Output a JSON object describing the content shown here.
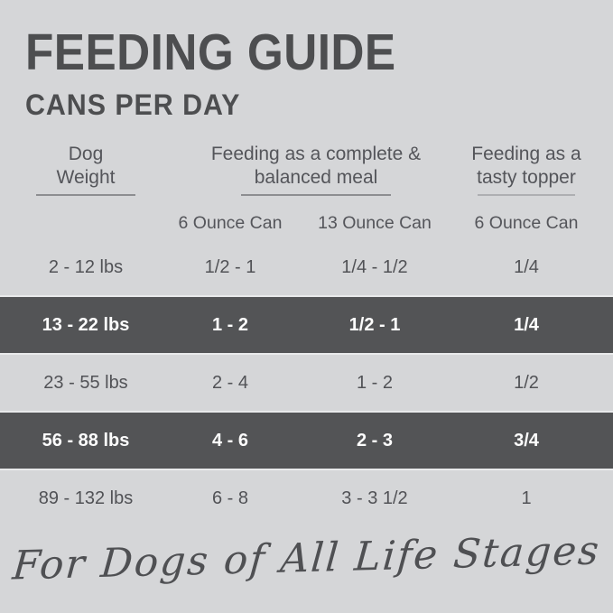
{
  "header": {
    "title": "FEEDING GUIDE",
    "subtitle": "CANS PER DAY"
  },
  "table": {
    "column_groups": {
      "dog_weight": "Dog Weight",
      "complete_meal": "Feeding as a complete & balanced meal",
      "tasty_topper": "Feeding as a tasty topper"
    },
    "sub_headers": {
      "meal_6oz": "6 Ounce Can",
      "meal_13oz": "13 Ounce Can",
      "topper_6oz": "6 Ounce Can"
    },
    "rows": [
      {
        "weight": "2 - 12 lbs",
        "meal_6oz": "1/2 - 1",
        "meal_13oz": "1/4 - 1/2",
        "topper_6oz": "1/4",
        "highlighted": false
      },
      {
        "weight": "13 - 22 lbs",
        "meal_6oz": "1 - 2",
        "meal_13oz": "1/2 - 1",
        "topper_6oz": "1/4",
        "highlighted": true
      },
      {
        "weight": "23 - 55 lbs",
        "meal_6oz": "2 - 4",
        "meal_13oz": "1 - 2",
        "topper_6oz": "1/2",
        "highlighted": false
      },
      {
        "weight": "56 - 88 lbs",
        "meal_6oz": "4 - 6",
        "meal_13oz": "2 - 3",
        "topper_6oz": "3/4",
        "highlighted": true
      },
      {
        "weight": "89 - 132 lbs",
        "meal_6oz": "6 - 8",
        "meal_13oz": "3 - 3 1/2",
        "topper_6oz": "1",
        "highlighted": false
      }
    ]
  },
  "footer": {
    "tagline": "For Dogs of All Life Stages"
  },
  "colors": {
    "background": "#d5d6d8",
    "title_text": "#4d4e50",
    "body_text": "#515256",
    "highlight_row_background": "#535456",
    "highlight_row_text": "#ffffff"
  }
}
